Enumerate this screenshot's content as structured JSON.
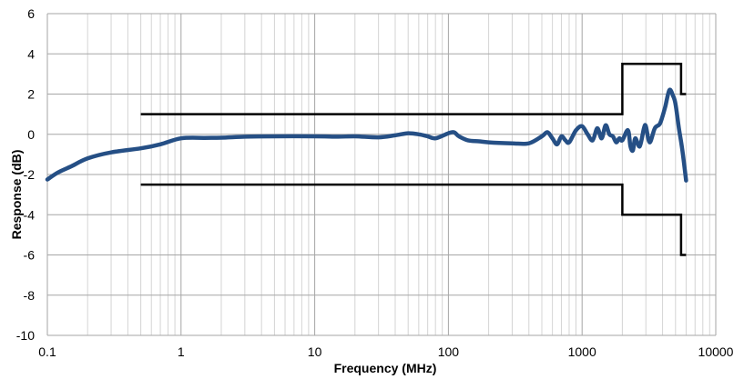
{
  "chart_data": {
    "type": "line",
    "title": "",
    "xlabel": "Frequency (MHz)",
    "ylabel": "Response (dB)",
    "xscale": "log",
    "xlim": [
      0.1,
      10000
    ],
    "ylim": [
      -10,
      6
    ],
    "grid": true,
    "x_tick_labels": [
      "0.1",
      "1",
      "10",
      "100",
      "1000",
      "10000"
    ],
    "x_tick_values": [
      0.1,
      1,
      10,
      100,
      1000,
      10000
    ],
    "y_tick_labels": [
      "-10",
      "-8",
      "-6",
      "-4",
      "-2",
      "0",
      "2",
      "4",
      "6"
    ],
    "y_tick_values": [
      -10,
      -8,
      -6,
      -4,
      -2,
      0,
      2,
      4,
      6
    ],
    "series": [
      {
        "color": "#254f85",
        "x": [
          0.1,
          0.12,
          0.15,
          0.2,
          0.3,
          0.5,
          0.7,
          1,
          1.5,
          2,
          3,
          5,
          10,
          15,
          20,
          30,
          40,
          50,
          60,
          70,
          80,
          100,
          110,
          120,
          140,
          170,
          200,
          300,
          400,
          500,
          550,
          600,
          650,
          700,
          750,
          800,
          900,
          1000,
          1100,
          1200,
          1300,
          1400,
          1500,
          1600,
          1700,
          1800,
          1900,
          2000,
          2200,
          2300,
          2400,
          2500,
          2700,
          2900,
          3000,
          3200,
          3500,
          3800,
          4000,
          4200,
          4500,
          4800,
          5000,
          5300,
          5600,
          6000
        ],
        "y": [
          -2.25,
          -1.9,
          -1.6,
          -1.2,
          -0.9,
          -0.7,
          -0.5,
          -0.2,
          -0.18,
          -0.17,
          -0.12,
          -0.1,
          -0.1,
          -0.12,
          -0.1,
          -0.15,
          -0.05,
          0.05,
          0.0,
          -0.1,
          -0.2,
          0.05,
          0.1,
          -0.1,
          -0.3,
          -0.35,
          -0.4,
          -0.45,
          -0.45,
          -0.1,
          0.1,
          -0.2,
          -0.5,
          -0.1,
          -0.3,
          -0.4,
          0.2,
          0.4,
          0.0,
          -0.3,
          0.3,
          -0.2,
          0.45,
          0.0,
          -0.1,
          -0.4,
          -0.2,
          -0.3,
          0.2,
          -0.6,
          -0.8,
          -0.2,
          -0.6,
          0.3,
          0.4,
          -0.4,
          0.3,
          0.5,
          0.9,
          1.4,
          2.2,
          1.9,
          1.5,
          0.3,
          -0.7,
          -2.3
        ]
      }
    ],
    "limit_lines": [
      {
        "color": "#000000",
        "x": [
          0.5,
          2000,
          2000,
          5500,
          5500,
          6000
        ],
        "y": [
          1,
          1,
          3.5,
          3.5,
          2,
          2
        ]
      },
      {
        "color": "#000000",
        "x": [
          0.5,
          2000,
          2000,
          5500,
          5500,
          6000
        ],
        "y": [
          -2.5,
          -2.5,
          -4,
          -4,
          -6,
          -6
        ]
      }
    ]
  }
}
